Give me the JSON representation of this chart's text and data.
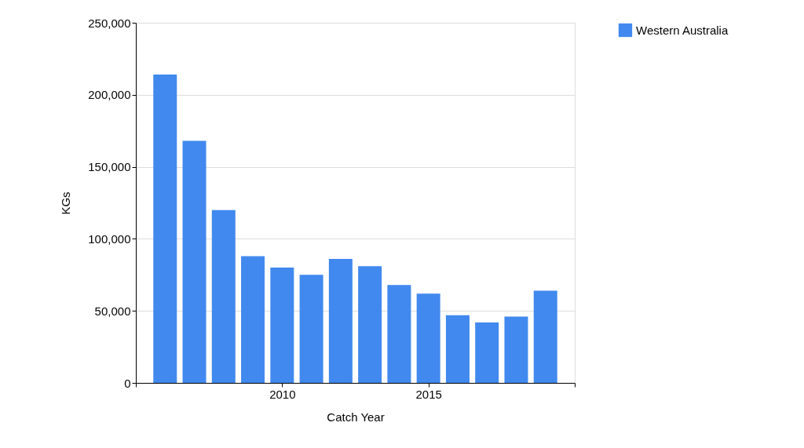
{
  "chart_data": {
    "type": "bar",
    "xlabel": "Catch Year",
    "ylabel": "KGs",
    "x": [
      2006,
      2007,
      2008,
      2009,
      2010,
      2011,
      2012,
      2013,
      2014,
      2015,
      2016,
      2017,
      2018,
      2019
    ],
    "series": [
      {
        "name": "Western Australia",
        "color": "#4189ee",
        "values": [
          214000,
          168000,
          120000,
          88000,
          80000,
          75000,
          86000,
          81000,
          68000,
          62000,
          47000,
          42000,
          46000,
          64000
        ]
      }
    ],
    "xlim": [
      2005,
      2020
    ],
    "xticks": [
      {
        "value": 2005,
        "label": null
      },
      2010,
      2015,
      {
        "value": 2020,
        "label": null
      }
    ],
    "ylim": [
      0,
      250000
    ],
    "yticks": [
      0,
      {
        "value": 50000,
        "label": "50,000"
      },
      {
        "value": 100000,
        "label": "100,000"
      },
      {
        "value": 150000,
        "label": "150,000"
      },
      {
        "value": 200000,
        "label": "200,000"
      },
      {
        "value": 250000,
        "label": "250,000"
      }
    ],
    "grid": "y",
    "legend": "top right"
  }
}
